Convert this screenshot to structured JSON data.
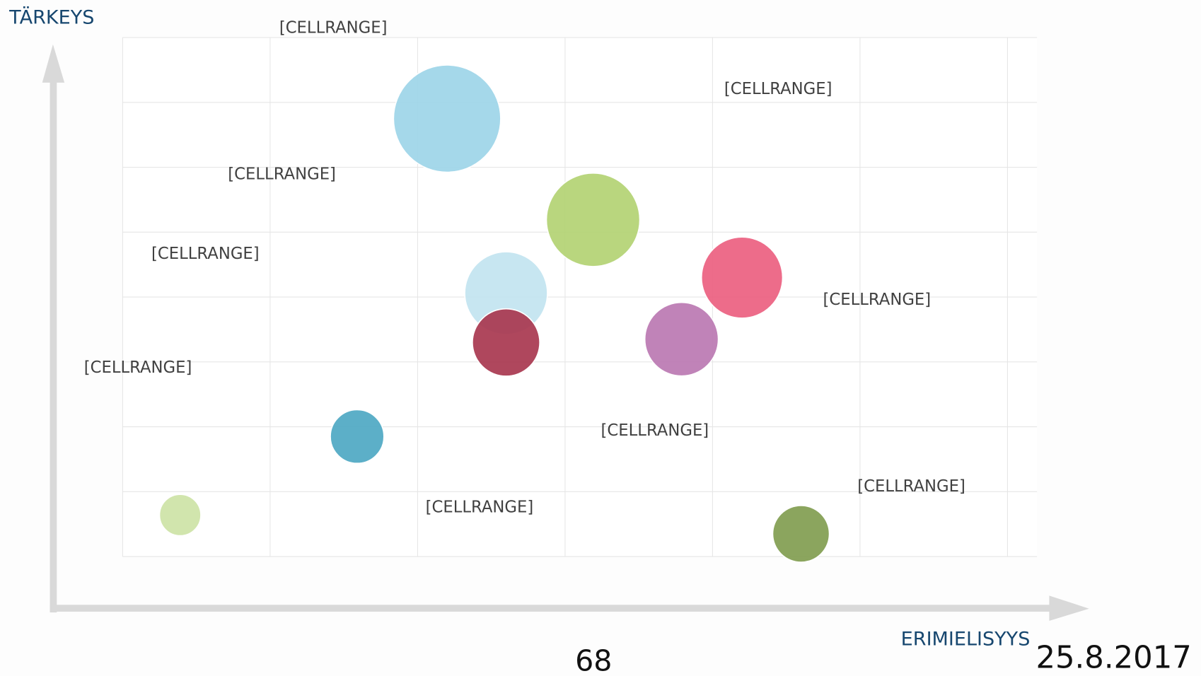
{
  "chart_data": {
    "type": "bubble",
    "y_label": "TÄRKEYS",
    "x_label": "ERIMIELISYYS",
    "x": [
      0.39,
      1.59,
      2.2,
      2.6,
      2.6,
      3.19,
      3.79,
      4.2,
      4.6
    ],
    "y": [
      0.64,
      1.85,
      6.75,
      4.06,
      3.3,
      5.19,
      3.35,
      4.3,
      0.35
    ],
    "sizes": [
      27,
      35,
      70,
      54,
      44,
      61,
      48,
      53,
      37
    ],
    "colors": [
      "#cde3a6",
      "#4ea8c3",
      "#9dd5e8",
      "#c2e4f0",
      "#a8374f",
      "#b3d373",
      "#bb78b2",
      "#ec5f80",
      "#819d50"
    ],
    "value_labels": [
      "[CELLRANGE]",
      "[CELLRANGE]",
      "[CELLRANGE]",
      "[CELLRANGE]",
      "[CELLRANGE]",
      "[CELLRANGE]",
      "[CELLRANGE]",
      "[CELLRANGE]",
      "[CELLRANGE]"
    ],
    "xlim": [
      0,
      6.2
    ],
    "ylim": [
      0,
      8
    ],
    "xticks": [
      0,
      1,
      2,
      3,
      4,
      5,
      6
    ],
    "yticks": [
      0,
      1,
      2,
      3,
      4,
      5,
      6,
      7,
      8
    ],
    "grid": true
  },
  "footer": {
    "page_number": "68",
    "date": "25.8.2017"
  }
}
